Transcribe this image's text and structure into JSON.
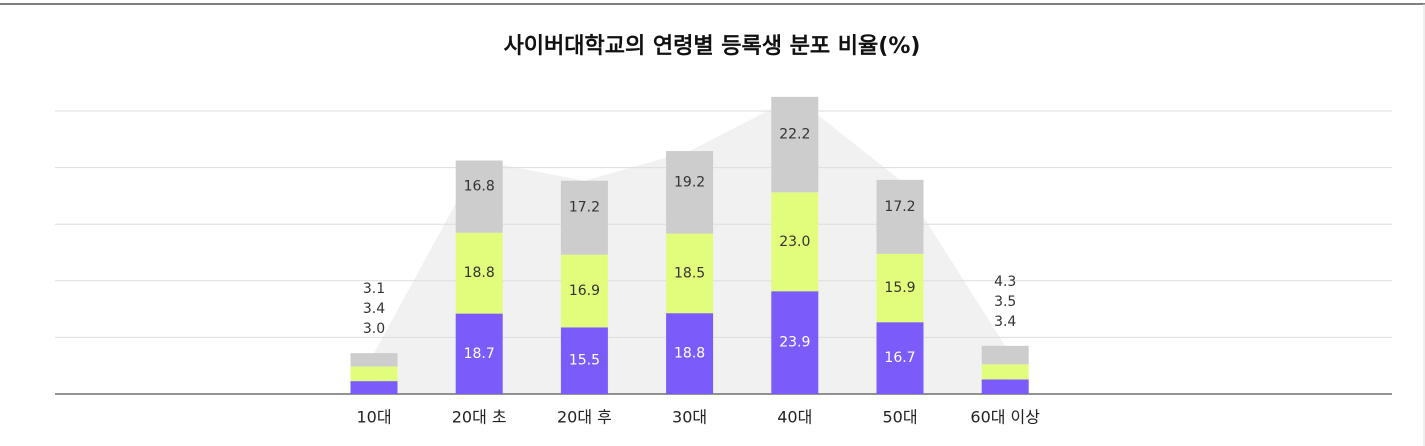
{
  "chart_data": {
    "type": "stacked-bar",
    "title": "사이버대학교의 연령별 등록생 분포 비율(%)",
    "categories": [
      "10대",
      "20대 초",
      "20대 후",
      "30대",
      "40대",
      "50대",
      "60대 이상"
    ],
    "series": [
      {
        "color": "#7b5cfa",
        "values": [
          3.0,
          18.7,
          15.5,
          18.8,
          23.9,
          16.7,
          3.4
        ],
        "value_labels": [
          "3.0",
          "18.7",
          "15.5",
          "18.8",
          "23.9",
          "16.7",
          "3.4"
        ]
      },
      {
        "color": "#e2fd7c",
        "values": [
          3.4,
          18.8,
          16.9,
          18.5,
          23.0,
          15.9,
          3.5
        ],
        "value_labels": [
          "3.4",
          "18.8",
          "16.9",
          "18.5",
          "23.0",
          "15.9",
          "3.5"
        ]
      },
      {
        "color": "#cdcdcd",
        "values": [
          3.1,
          16.8,
          17.2,
          19.2,
          22.2,
          17.2,
          4.3
        ],
        "value_labels": [
          "3.1",
          "16.8",
          "17.2",
          "19.2",
          "22.2",
          "17.2",
          "4.3"
        ]
      }
    ],
    "ylim": [
      0,
      70
    ],
    "grid": true
  }
}
